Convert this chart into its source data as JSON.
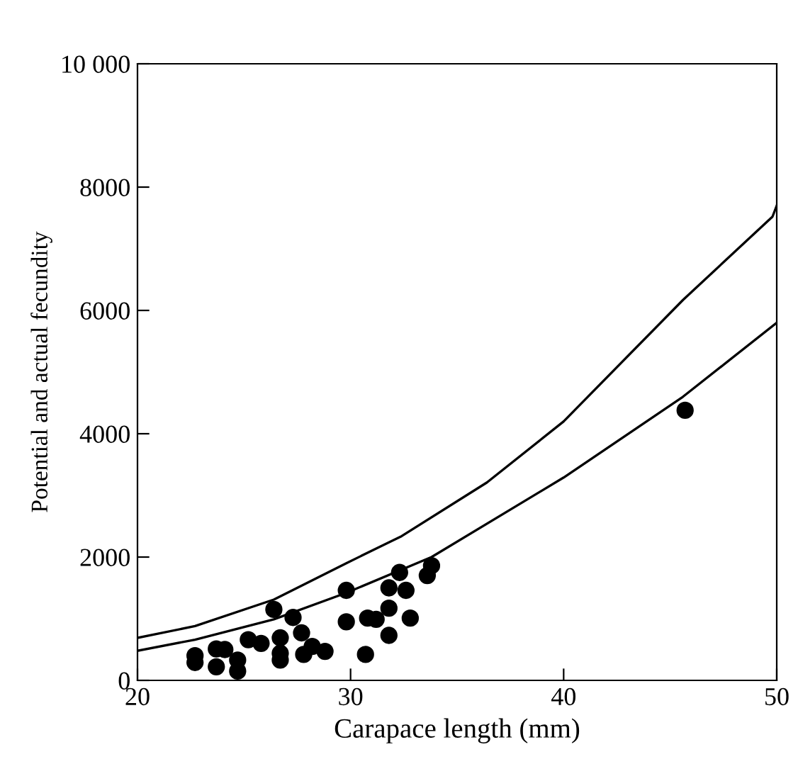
{
  "chart_data": {
    "type": "scatter",
    "xlabel": "Carapace length (mm)",
    "ylabel": "Potential and actual fecundity",
    "xlim": [
      20,
      50
    ],
    "ylim": [
      0,
      10000
    ],
    "xticks": [
      20,
      30,
      40,
      50
    ],
    "yticks": [
      0,
      2000,
      4000,
      6000,
      8000,
      {
        "value": 10000,
        "label": "10 000"
      }
    ],
    "grid": false,
    "series": [
      {
        "color": "#000000",
        "marker": "circle",
        "x": [
          22.7,
          22.7,
          23.7,
          24.1,
          23.7,
          24.7,
          24.7,
          25.2,
          25.8,
          26.4,
          26.7,
          26.7,
          26.7,
          27.3,
          27.7,
          27.8,
          28.2,
          28.8,
          29.8,
          29.8,
          30.7,
          30.8,
          31.2,
          31.8,
          31.8,
          31.8,
          32.3,
          32.6,
          32.8,
          33.6,
          33.8,
          45.7
        ],
        "values": [
          400,
          290,
          510,
          500,
          220,
          330,
          150,
          660,
          600,
          1150,
          690,
          440,
          330,
          1020,
          770,
          420,
          550,
          470,
          1460,
          950,
          420,
          1010,
          990,
          1500,
          1170,
          730,
          1750,
          1460,
          1010,
          1700,
          1860,
          4380
        ]
      },
      {
        "type": "line",
        "color": "#000000",
        "marker": "none",
        "line_style": "solid",
        "x": [
          20,
          22.7,
          26.4,
          29.8,
          32.4,
          36.4,
          40,
          45.6,
          49.8,
          50
        ],
        "values": [
          690,
          880,
          1310,
          1900,
          2340,
          3210,
          4200,
          6170,
          7520,
          7700
        ]
      },
      {
        "type": "line",
        "color": "#000000",
        "marker": "none",
        "line_style": "solid",
        "x": [
          20,
          22.7,
          26.4,
          29.8,
          33.8,
          40,
          45.6,
          50
        ],
        "values": [
          480,
          660,
          990,
          1420,
          2000,
          3290,
          4600,
          5800
        ]
      }
    ]
  }
}
